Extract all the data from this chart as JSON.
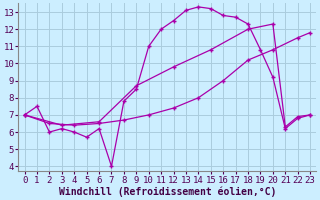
{
  "background_color": "#cceeff",
  "grid_color": "#aaccdd",
  "line_color": "#aa00aa",
  "xlim": [
    -0.5,
    23.5
  ],
  "ylim": [
    3.7,
    13.5
  ],
  "xticks": [
    0,
    1,
    2,
    3,
    4,
    5,
    6,
    7,
    8,
    9,
    10,
    11,
    12,
    13,
    14,
    15,
    16,
    17,
    18,
    19,
    20,
    21,
    22,
    23
  ],
  "yticks": [
    4,
    5,
    6,
    7,
    8,
    9,
    10,
    11,
    12,
    13
  ],
  "xlabel": "Windchill (Refroidissement éolien,°C)",
  "series1_x": [
    0,
    1,
    2,
    3,
    4,
    5,
    6,
    7,
    8,
    9,
    10,
    11,
    12,
    13,
    14,
    15,
    16,
    17,
    18,
    19,
    20,
    21,
    22,
    23
  ],
  "series1_y": [
    7.0,
    7.5,
    6.0,
    6.2,
    6.0,
    5.7,
    6.2,
    4.0,
    7.8,
    8.5,
    11.0,
    12.0,
    12.5,
    13.1,
    13.3,
    13.2,
    12.8,
    12.7,
    12.3,
    10.8,
    9.2,
    6.2,
    6.8,
    7.0
  ],
  "series2_x": [
    0,
    2,
    4,
    6,
    8,
    10,
    12,
    14,
    16,
    18,
    20,
    22,
    23
  ],
  "series2_y": [
    7.0,
    6.5,
    6.4,
    6.5,
    6.7,
    7.0,
    7.4,
    8.0,
    9.0,
    10.2,
    10.8,
    11.5,
    11.8
  ],
  "series3_x": [
    0,
    3,
    6,
    9,
    12,
    15,
    18,
    20,
    21,
    22,
    23
  ],
  "series3_y": [
    7.0,
    6.4,
    6.6,
    8.7,
    9.8,
    10.8,
    12.0,
    12.3,
    6.3,
    6.9,
    7.0
  ],
  "tick_fontsize": 6.5,
  "xlabel_fontsize": 7
}
